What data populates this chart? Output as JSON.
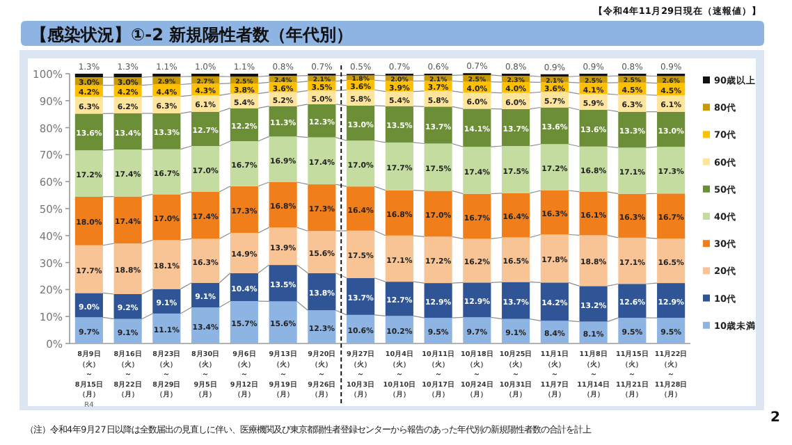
{
  "chart_data": {
    "type": "bar",
    "stacked": true,
    "title": "【感染状況】①-2 新規陽性者数（年代別）",
    "subtitle": "【令和4年11月29日現在（速報値）】",
    "categories": [
      "8月9日（火）～8月15日（月）",
      "8月16日（火）～8月22日（月）",
      "8月23日（火）～8月29日（月）",
      "8月30日（火）～9月5日（月）",
      "9月6日（火）～9月12日（月）",
      "9月13日（火）～9月19日（月）",
      "9月20日（火）～9月26日（月）",
      "9月27日（火）～10月3日（月）",
      "10月4日（火）～10月10日（月）",
      "10月11日（火）～10月17日（月）",
      "10月18日（火）～10月24日（月）",
      "10月25日（火）～10月31日（月）",
      "11月1日（火）～11月7日（月）",
      "11月8日（火）～11月14日（月）",
      "11月15日（火）～11月21日（月）",
      "11月22日（火）～11月28日（月）"
    ],
    "series": [
      {
        "name": "10歳未満",
        "color": "#8eb4e3",
        "values": [
          9.7,
          9.1,
          11.1,
          13.4,
          15.7,
          15.6,
          12.3,
          10.6,
          10.2,
          9.5,
          9.7,
          9.1,
          8.4,
          8.1,
          9.5,
          9.5
        ],
        "value_labels": [
          "9.7%",
          "9.1%",
          "11.1%",
          "13.4%",
          "15.7%",
          "15.6%",
          "12.3%",
          "10.6%",
          "10.2%",
          "9.5%",
          "9.7%",
          "9.1%",
          "8.4%",
          "8.1%",
          "9.5%",
          "9.5%"
        ]
      },
      {
        "name": "10代",
        "color": "#2f5597",
        "values": [
          9.0,
          9.2,
          9.1,
          9.1,
          10.4,
          13.5,
          13.8,
          13.7,
          12.7,
          12.9,
          12.9,
          13.7,
          14.2,
          13.2,
          12.6,
          12.9
        ],
        "value_labels": [
          "9.0%",
          "9.2%",
          "9.1%",
          "9.1%",
          "10.4%",
          "13.5%",
          "13.8%",
          "13.7%",
          "12.7%",
          "12.9%",
          "12.9%",
          "13.7%",
          "14.2%",
          "13.2%",
          "12.6%",
          "12.9%"
        ]
      },
      {
        "name": "20代",
        "color": "#f8c496",
        "values": [
          17.7,
          18.8,
          18.1,
          16.3,
          14.9,
          13.9,
          15.6,
          17.5,
          17.1,
          17.2,
          16.2,
          16.5,
          17.8,
          18.8,
          17.1,
          16.5
        ],
        "value_labels": [
          "17.7%",
          "18.8%",
          "18.1%",
          "16.3%",
          "14.9%",
          "13.9%",
          "15.6%",
          "17.5%",
          "17.1%",
          "17.2%",
          "16.2%",
          "16.5%",
          "17.8%",
          "18.8%",
          "17.1%",
          "16.5%"
        ]
      },
      {
        "name": "30代",
        "color": "#f07f1b",
        "values": [
          18.0,
          17.4,
          17.0,
          17.4,
          17.3,
          16.8,
          17.3,
          16.4,
          16.8,
          17.0,
          16.7,
          16.4,
          16.3,
          16.1,
          16.3,
          16.7
        ],
        "value_labels": [
          "18.0%",
          "17.4%",
          "17.0%",
          "17.4%",
          "17.3%",
          "16.8%",
          "17.3%",
          "16.4%",
          "16.8%",
          "17.0%",
          "16.7%",
          "16.4%",
          "16.3%",
          "16.1%",
          "16.3%",
          "16.7%"
        ]
      },
      {
        "name": "40代",
        "color": "#c4dca0",
        "values": [
          17.2,
          17.4,
          16.7,
          17.0,
          16.7,
          16.9,
          17.4,
          17.0,
          17.7,
          17.5,
          17.4,
          17.5,
          17.2,
          16.8,
          17.1,
          17.3
        ],
        "value_labels": [
          "17.2%",
          "17.4%",
          "16.7%",
          "17.0%",
          "16.7%",
          "16.9%",
          "17.4%",
          "17.0%",
          "17.7%",
          "17.5%",
          "17.4%",
          "17.5%",
          "17.2%",
          "16.8%",
          "17.1%",
          "17.3%"
        ]
      },
      {
        "name": "50代",
        "color": "#6b8e37",
        "values": [
          13.6,
          13.4,
          13.3,
          12.7,
          12.2,
          11.3,
          12.3,
          13.0,
          13.5,
          13.7,
          14.1,
          13.7,
          13.6,
          13.6,
          13.3,
          13.0
        ],
        "value_labels": [
          "13.6%",
          "13.4%",
          "13.3%",
          "12.7%",
          "12.2%",
          "11.3%",
          "12.3%",
          "13.0%",
          "13.5%",
          "13.7%",
          "14.1%",
          "13.7%",
          "13.6%",
          "13.6%",
          "13.3%",
          "13.0%"
        ]
      },
      {
        "name": "60代",
        "color": "#ffe49c",
        "values": [
          6.3,
          6.2,
          6.3,
          6.1,
          5.4,
          5.2,
          5.0,
          5.8,
          5.4,
          5.8,
          6.0,
          6.0,
          5.7,
          5.9,
          6.3,
          6.1
        ],
        "value_labels": [
          "6.3%",
          "6.2%",
          "6.3%",
          "6.1%",
          "5.4%",
          "5.2%",
          "5.0%",
          "5.8%",
          "5.4%",
          "5.8%",
          "6.0%",
          "6.0%",
          "5.7%",
          "5.9%",
          "6.3%",
          "6.1%"
        ]
      },
      {
        "name": "70代",
        "color": "#ffc000",
        "values": [
          4.2,
          4.2,
          4.4,
          4.3,
          3.8,
          3.6,
          3.5,
          3.6,
          3.9,
          3.7,
          4.0,
          4.0,
          3.6,
          4.1,
          4.5,
          4.5
        ],
        "value_labels": [
          "4.2%",
          "4.2%",
          "4.4%",
          "4.3%",
          "3.8%",
          "3.6%",
          "3.5%",
          "3.6%",
          "3.9%",
          "3.7%",
          "4.0%",
          "4.0%",
          "3.6%",
          "4.1%",
          "4.5%",
          "4.5%"
        ]
      },
      {
        "name": "80代",
        "color": "#c99a06",
        "values": [
          3.0,
          3.0,
          2.9,
          2.7,
          2.5,
          2.4,
          2.1,
          1.8,
          2.0,
          2.1,
          2.5,
          2.3,
          2.1,
          2.5,
          2.5,
          2.6
        ],
        "value_labels": [
          "3.0%",
          "3.0%",
          "2.9%",
          "2.7%",
          "2.5%",
          "2.4%",
          "2.1%",
          "1.8%",
          "2.0%",
          "2.1%",
          "2.5%",
          "2.3%",
          "2.1%",
          "2.5%",
          "2.5%",
          "2.6%"
        ]
      },
      {
        "name": "90歳以上",
        "color": "#111111",
        "values": [
          1.3,
          1.3,
          1.1,
          1.0,
          1.1,
          0.8,
          0.7,
          0.5,
          0.7,
          0.6,
          0.7,
          0.8,
          0.9,
          0.9,
          0.8,
          0.9
        ],
        "value_labels": [
          "1.3%",
          "1.3%",
          "1.1%",
          "1.0%",
          "1.1%",
          "0.8%",
          "0.7%",
          "0.5%",
          "0.7%",
          "0.6%",
          "0.7%",
          "0.8%",
          "0.9%",
          "0.9%",
          "0.8%",
          "0.9%"
        ]
      }
    ],
    "ylim": [
      0,
      100
    ],
    "yticks": [
      {
        "value": 0,
        "label": "0%"
      },
      {
        "value": 10,
        "label": "10%"
      },
      {
        "value": 20,
        "label": "20%"
      },
      {
        "value": 30,
        "label": "30%"
      },
      {
        "value": 40,
        "label": "40%"
      },
      {
        "value": 50,
        "label": "50%"
      },
      {
        "value": 60,
        "label": "60%"
      },
      {
        "value": 70,
        "label": "70%"
      },
      {
        "value": 80,
        "label": "80%"
      },
      {
        "value": 90,
        "label": "90%"
      },
      {
        "value": 100,
        "label": "100%"
      }
    ],
    "grid": false,
    "legend": "right",
    "annotations": [
      "R4",
      "（注）令和4年9月27日以降は全数届出の見直しに伴い、医療機関及び東京都陽性者登録センターから報告のあった年代別の新規陽性者数の合計を計上",
      "2"
    ]
  }
}
